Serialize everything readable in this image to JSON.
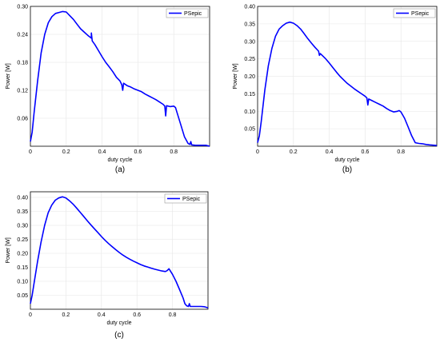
{
  "chart_data": [
    {
      "type": "line",
      "caption": "(a)",
      "xlabel": "duty cycle",
      "ylabel": "Power [W]",
      "xlim": [
        0,
        1
      ],
      "ylim": [
        0,
        0.3
      ],
      "xticks": [
        "0",
        "0.2",
        "0.4",
        "0.6",
        "0.8"
      ],
      "xtick_values": [
        0,
        0.2,
        0.4,
        0.6,
        0.8
      ],
      "yticks": [
        "0.06",
        "0.12",
        "0.18",
        "0.24",
        "0.30"
      ],
      "ytick_values": [
        0.06,
        0.12,
        0.18,
        0.24,
        0.3
      ],
      "grid": true,
      "legend_position": "top-right",
      "color": "#0000ff",
      "series": [
        {
          "name": "PSepic",
          "x": [
            0,
            0.01,
            0.02,
            0.04,
            0.06,
            0.08,
            0.1,
            0.12,
            0.14,
            0.16,
            0.18,
            0.2,
            0.22,
            0.24,
            0.26,
            0.28,
            0.3,
            0.32,
            0.34,
            0.34,
            0.345,
            0.36,
            0.38,
            0.4,
            0.42,
            0.44,
            0.46,
            0.48,
            0.5,
            0.51,
            0.515,
            0.52,
            0.54,
            0.56,
            0.58,
            0.6,
            0.62,
            0.64,
            0.66,
            0.68,
            0.7,
            0.72,
            0.74,
            0.75,
            0.755,
            0.76,
            0.78,
            0.8,
            0.81,
            0.82,
            0.84,
            0.86,
            0.88,
            0.89,
            0.895,
            0.9,
            0.92,
            0.94,
            0.96,
            0.98,
            1.0
          ],
          "y": [
            0.01,
            0.03,
            0.07,
            0.14,
            0.2,
            0.24,
            0.265,
            0.278,
            0.285,
            0.287,
            0.289,
            0.288,
            0.28,
            0.272,
            0.262,
            0.252,
            0.245,
            0.238,
            0.232,
            0.243,
            0.226,
            0.218,
            0.205,
            0.192,
            0.18,
            0.17,
            0.16,
            0.148,
            0.14,
            0.132,
            0.12,
            0.135,
            0.13,
            0.127,
            0.123,
            0.12,
            0.117,
            0.112,
            0.108,
            0.104,
            0.1,
            0.095,
            0.09,
            0.086,
            0.065,
            0.087,
            0.085,
            0.086,
            0.083,
            0.07,
            0.045,
            0.02,
            0.006,
            0.004,
            0.01,
            0.003,
            0.002,
            0.002,
            0.002,
            0.002,
            0.0
          ]
        }
      ]
    },
    {
      "type": "line",
      "caption": "(b)",
      "xlabel": "duty cycle",
      "ylabel": "Power [W]",
      "xlim": [
        0,
        1
      ],
      "ylim": [
        0,
        0.4
      ],
      "xticks": [
        "0",
        "0.2",
        "0.4",
        "0.6",
        "0.8"
      ],
      "xtick_values": [
        0,
        0.2,
        0.4,
        0.6,
        0.8
      ],
      "yticks": [
        "0.05",
        "0.10",
        "0.15",
        "0.20",
        "0.25",
        "0.30",
        "0.35",
        "0.40"
      ],
      "ytick_values": [
        0.05,
        0.1,
        0.15,
        0.2,
        0.25,
        0.3,
        0.35,
        0.4
      ],
      "grid": true,
      "legend_position": "top-right",
      "color": "#0000ff",
      "series": [
        {
          "name": "PSepic",
          "x": [
            0,
            0.01,
            0.02,
            0.04,
            0.06,
            0.08,
            0.1,
            0.12,
            0.14,
            0.16,
            0.18,
            0.2,
            0.22,
            0.24,
            0.26,
            0.28,
            0.3,
            0.32,
            0.34,
            0.345,
            0.35,
            0.38,
            0.4,
            0.42,
            0.44,
            0.46,
            0.48,
            0.5,
            0.52,
            0.54,
            0.56,
            0.58,
            0.6,
            0.61,
            0.615,
            0.62,
            0.64,
            0.66,
            0.68,
            0.7,
            0.72,
            0.74,
            0.76,
            0.78,
            0.79,
            0.8,
            0.82,
            0.84,
            0.86,
            0.88,
            0.9,
            0.92,
            0.94,
            0.96,
            0.98,
            1.0
          ],
          "y": [
            0.01,
            0.03,
            0.07,
            0.16,
            0.23,
            0.28,
            0.315,
            0.335,
            0.345,
            0.352,
            0.355,
            0.352,
            0.345,
            0.335,
            0.322,
            0.308,
            0.295,
            0.283,
            0.272,
            0.26,
            0.265,
            0.25,
            0.238,
            0.225,
            0.212,
            0.2,
            0.19,
            0.18,
            0.172,
            0.164,
            0.157,
            0.15,
            0.143,
            0.138,
            0.118,
            0.135,
            0.13,
            0.125,
            0.12,
            0.115,
            0.108,
            0.102,
            0.098,
            0.1,
            0.102,
            0.098,
            0.08,
            0.055,
            0.03,
            0.01,
            0.008,
            0.007,
            0.005,
            0.004,
            0.003,
            0.002
          ]
        }
      ]
    },
    {
      "type": "line",
      "caption": "(c)",
      "xlabel": "duty cycle",
      "ylabel": "Power [W]",
      "xlim": [
        0,
        1
      ],
      "ylim": [
        0,
        0.42
      ],
      "xticks": [
        "0",
        "0.2",
        "0.4",
        "0.6",
        "0.8"
      ],
      "xtick_values": [
        0,
        0.2,
        0.4,
        0.6,
        0.8
      ],
      "yticks": [
        "0.05",
        "0.10",
        "0.15",
        "0.20",
        "0.25",
        "0.30",
        "0.35",
        "0.40"
      ],
      "ytick_values": [
        0.05,
        0.1,
        0.15,
        0.2,
        0.25,
        0.3,
        0.35,
        0.4
      ],
      "grid": true,
      "legend_position": "top-right",
      "color": "#0000ff",
      "series": [
        {
          "name": "PSepic",
          "x": [
            0,
            0.01,
            0.02,
            0.04,
            0.06,
            0.08,
            0.1,
            0.12,
            0.14,
            0.16,
            0.18,
            0.2,
            0.22,
            0.24,
            0.26,
            0.28,
            0.3,
            0.32,
            0.34,
            0.36,
            0.38,
            0.4,
            0.42,
            0.44,
            0.46,
            0.48,
            0.5,
            0.52,
            0.54,
            0.56,
            0.58,
            0.6,
            0.62,
            0.64,
            0.66,
            0.68,
            0.7,
            0.72,
            0.74,
            0.76,
            0.77,
            0.78,
            0.8,
            0.82,
            0.84,
            0.86,
            0.87,
            0.88,
            0.89,
            0.895,
            0.9,
            0.92,
            0.94,
            0.96,
            0.98,
            1.0
          ],
          "y": [
            0.02,
            0.05,
            0.09,
            0.17,
            0.24,
            0.3,
            0.345,
            0.372,
            0.39,
            0.398,
            0.402,
            0.398,
            0.388,
            0.376,
            0.362,
            0.347,
            0.332,
            0.317,
            0.302,
            0.288,
            0.274,
            0.26,
            0.247,
            0.235,
            0.224,
            0.213,
            0.203,
            0.194,
            0.186,
            0.179,
            0.172,
            0.166,
            0.16,
            0.155,
            0.151,
            0.147,
            0.143,
            0.14,
            0.137,
            0.135,
            0.138,
            0.145,
            0.125,
            0.1,
            0.07,
            0.04,
            0.02,
            0.012,
            0.01,
            0.02,
            0.01,
            0.01,
            0.01,
            0.01,
            0.009,
            0.005
          ]
        }
      ]
    }
  ]
}
